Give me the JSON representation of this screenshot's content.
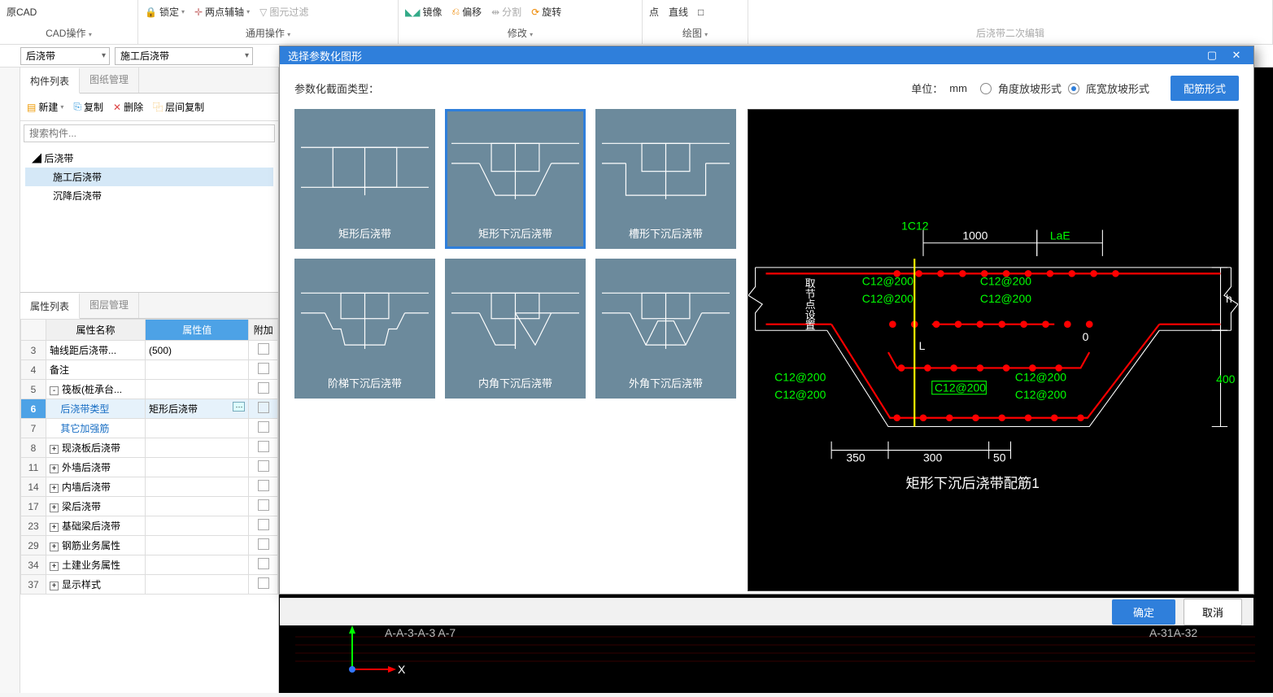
{
  "ribbon": {
    "cad": "原CAD",
    "cad_group_label": "CAD操作",
    "lock": "锁定",
    "two_point": "两点辅轴",
    "filter": "图元过滤",
    "general_group": "通用操作",
    "mirror": "镜像",
    "offset": "偏移",
    "split": "分割",
    "rotate": "旋转",
    "modify_group": "修改",
    "point": "点",
    "line": "直线",
    "sq": "□",
    "draw_group": "绘图",
    "secondary_group": "后浇带二次编辑"
  },
  "combos": {
    "a": "后浇带",
    "b": "施工后浇带"
  },
  "left": {
    "tab1": "构件列表",
    "tab2": "图纸管理",
    "new": "新建",
    "copy": "复制",
    "del": "删除",
    "floorcopy": "层间复制",
    "search_ph": "搜索构件...",
    "tree_root": "后浇带",
    "tree_c1": "施工后浇带",
    "tree_c2": "沉降后浇带",
    "prop_tab1": "属性列表",
    "prop_tab2": "图层管理",
    "col_name": "属性名称",
    "col_val": "属性值",
    "col_att": "附加"
  },
  "props": [
    {
      "n": "3",
      "name": "轴线距后浇带...",
      "val": "(500)"
    },
    {
      "n": "4",
      "name": "备注",
      "val": ""
    },
    {
      "n": "5",
      "name": "筏板(桩承台...",
      "val": "",
      "exp": "-"
    },
    {
      "n": "6",
      "name": "后浇带类型",
      "val": "矩形后浇带",
      "blue": true,
      "sel": true,
      "btn": true
    },
    {
      "n": "7",
      "name": "其它加强筋",
      "val": "",
      "blue": true
    },
    {
      "n": "8",
      "name": "现浇板后浇带",
      "val": "",
      "exp": "+"
    },
    {
      "n": "11",
      "name": "外墙后浇带",
      "val": "",
      "exp": "+"
    },
    {
      "n": "14",
      "name": "内墙后浇带",
      "val": "",
      "exp": "+"
    },
    {
      "n": "17",
      "name": "梁后浇带",
      "val": "",
      "exp": "+"
    },
    {
      "n": "23",
      "name": "基础梁后浇带",
      "val": "",
      "exp": "+"
    },
    {
      "n": "29",
      "name": "钢筋业务属性",
      "val": "",
      "exp": "+"
    },
    {
      "n": "34",
      "name": "土建业务属性",
      "val": "",
      "exp": "+"
    },
    {
      "n": "37",
      "name": "显示样式",
      "val": "",
      "exp": "+"
    }
  ],
  "modal": {
    "title": "选择参数化图形",
    "section_label": "参数化截面类型：",
    "unit_label": "单位：",
    "unit_val": "mm",
    "radio1": "角度放坡形式",
    "radio2": "底宽放坡形式",
    "rebar_btn": "配筋形式",
    "ok": "确定",
    "cancel": "取消",
    "thumbs": [
      "矩形后浇带",
      "矩形下沉后浇带",
      "槽形下沉后浇带",
      "阶梯下沉后浇带",
      "内角下沉后浇带",
      "外角下沉后浇带"
    ],
    "selected_index": 1
  },
  "preview": {
    "caption": "矩形下沉后浇带配筋1",
    "labels": {
      "top1": "1C12",
      "top2": "1000",
      "top3": "LaE",
      "c12_1": "C12@200",
      "c12_2": "C12@200",
      "c12_3": "C12@200",
      "c12_4": "C12@200",
      "c12_5": "C12@200",
      "c12_6": "C12@200",
      "c12_7": "C12@200",
      "L": "L",
      "zero": "0",
      "h": "h",
      "h400": "400",
      "d350": "350",
      "d300": "300",
      "d50": "50",
      "node_text": "取节点设置"
    },
    "colors": {
      "green": "#00ff00",
      "red": "#ff0000",
      "yellow": "#ffff00",
      "white": "#ffffff",
      "blue": "#2aa0ff"
    }
  },
  "canvas_bg": {
    "axis_x": "X",
    "coords": "A-A-3-A-3 A-7",
    "coords2": "A-31A-32"
  }
}
